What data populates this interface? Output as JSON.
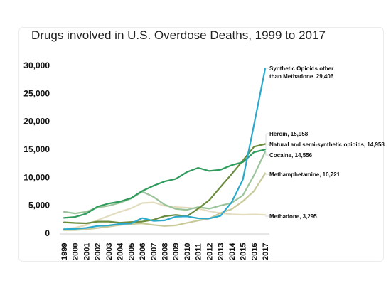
{
  "chart_data": {
    "type": "line",
    "title": "Drugs involved in U.S. Overdose Deaths, 1999 to 2017",
    "xlabel": "",
    "ylabel": "",
    "x": [
      "1999",
      "2000",
      "2001",
      "2002",
      "2003",
      "2004",
      "2005",
      "2006",
      "2007",
      "2008",
      "2009",
      "2010",
      "2011",
      "2012",
      "2013",
      "2014",
      "2015",
      "2016",
      "2017"
    ],
    "ylim": [
      0,
      30000
    ],
    "yticks": [
      0,
      5000,
      10000,
      15000,
      20000,
      25000,
      30000
    ],
    "ytick_labels": [
      "0",
      "5,000",
      "10,000",
      "15,000",
      "20,000",
      "25,000",
      "30,000"
    ],
    "grid": false,
    "legend": "end-of-line labels",
    "series": [
      {
        "name": "Synthetic Opioids other than Methadone",
        "label_lines": [
          "Synthetic Opioids other",
          "than Methadone, 29,406"
        ],
        "color": "#2ba9cc",
        "values": [
          730,
          782,
          957,
          1295,
          1400,
          1664,
          1742,
          2707,
          2213,
          2306,
          2946,
          3007,
          2666,
          2628,
          3105,
          5544,
          9580,
          19413,
          29406
        ]
      },
      {
        "name": "Heroin",
        "label_lines": [
          "Heroin, 15,958"
        ],
        "color": "#6a8c3c",
        "values": [
          1960,
          1842,
          1779,
          2089,
          2080,
          1878,
          2009,
          2088,
          2399,
          3041,
          3278,
          3036,
          4397,
          5925,
          8257,
          10574,
          12989,
          15469,
          15958
        ]
      },
      {
        "name": "Natural and semi-synthetic opioids",
        "label_lines": [
          "Natural and semi-synthetic opioids, 14,958"
        ],
        "color": "#2e9b5c",
        "values": [
          2749,
          2917,
          3505,
          4770,
          5309,
          5652,
          6276,
          7569,
          8497,
          9264,
          9714,
          10943,
          11693,
          11140,
          11346,
          12159,
          12727,
          14487,
          14958
        ]
      },
      {
        "name": "Cocaine",
        "label_lines": [
          "Cocaine, 14,556"
        ],
        "color": "#9bc39a",
        "values": [
          3822,
          3544,
          3833,
          4599,
          4918,
          5443,
          6208,
          7448,
          6512,
          5129,
          4350,
          4183,
          4681,
          4404,
          4944,
          5415,
          6784,
          10375,
          14556
        ]
      },
      {
        "name": "Methamphetamine",
        "label_lines": [
          "Methamphetamine, 10,721"
        ],
        "color": "#c8c99a",
        "values": [
          547,
          578,
          701,
          947,
          1179,
          1476,
          1656,
          1771,
          1484,
          1302,
          1412,
          1854,
          2266,
          2635,
          3627,
          4298,
          5716,
          7542,
          10721
        ]
      },
      {
        "name": "Methadone",
        "label_lines": [
          "Methadone, 3,295"
        ],
        "color": "#e3ddc0",
        "values": [
          784,
          986,
          1456,
          2358,
          3095,
          3845,
          4460,
          5406,
          5518,
          4924,
          4686,
          4577,
          4418,
          3932,
          3591,
          3400,
          3301,
          3373,
          3295
        ]
      }
    ]
  }
}
